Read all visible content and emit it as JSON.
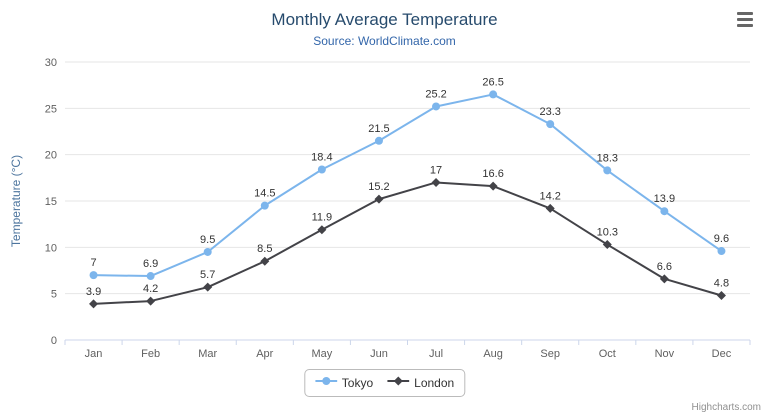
{
  "chart_data": {
    "type": "line",
    "title": "Monthly Average Temperature",
    "subtitle": "Source: WorldClimate.com",
    "xlabel": "",
    "ylabel": "Temperature (°C)",
    "ylim": [
      0,
      30
    ],
    "ytick_interval": 5,
    "yticks": [
      0,
      5,
      10,
      15,
      20,
      25,
      30
    ],
    "grid": true,
    "legend_position": "bottom",
    "categories": [
      "Jan",
      "Feb",
      "Mar",
      "Apr",
      "May",
      "Jun",
      "Jul",
      "Aug",
      "Sep",
      "Oct",
      "Nov",
      "Dec"
    ],
    "series": [
      {
        "name": "Tokyo",
        "marker": "circle",
        "color": "#7cb5ec",
        "values": [
          7,
          6.9,
          9.5,
          14.5,
          18.4,
          21.5,
          25.2,
          26.5,
          23.3,
          18.3,
          13.9,
          9.6
        ]
      },
      {
        "name": "London",
        "marker": "diamond",
        "color": "#434348",
        "values": [
          3.9,
          4.2,
          5.7,
          8.5,
          11.9,
          15.2,
          17,
          16.6,
          14.2,
          10.3,
          6.6,
          4.8
        ]
      }
    ],
    "colors": {
      "title": "#274b6d",
      "subtitle": "#3366aa",
      "axis_title": "#4d759e",
      "axis_labels": "#606060",
      "grid": "#e6e6e6",
      "axis_line": "#ccd6eb",
      "data_labels": "#333333",
      "legend_text": "#333333",
      "credits": "#909090"
    }
  },
  "icons": {
    "menu": "hamburger-menu"
  },
  "credits": "Highcharts.com"
}
